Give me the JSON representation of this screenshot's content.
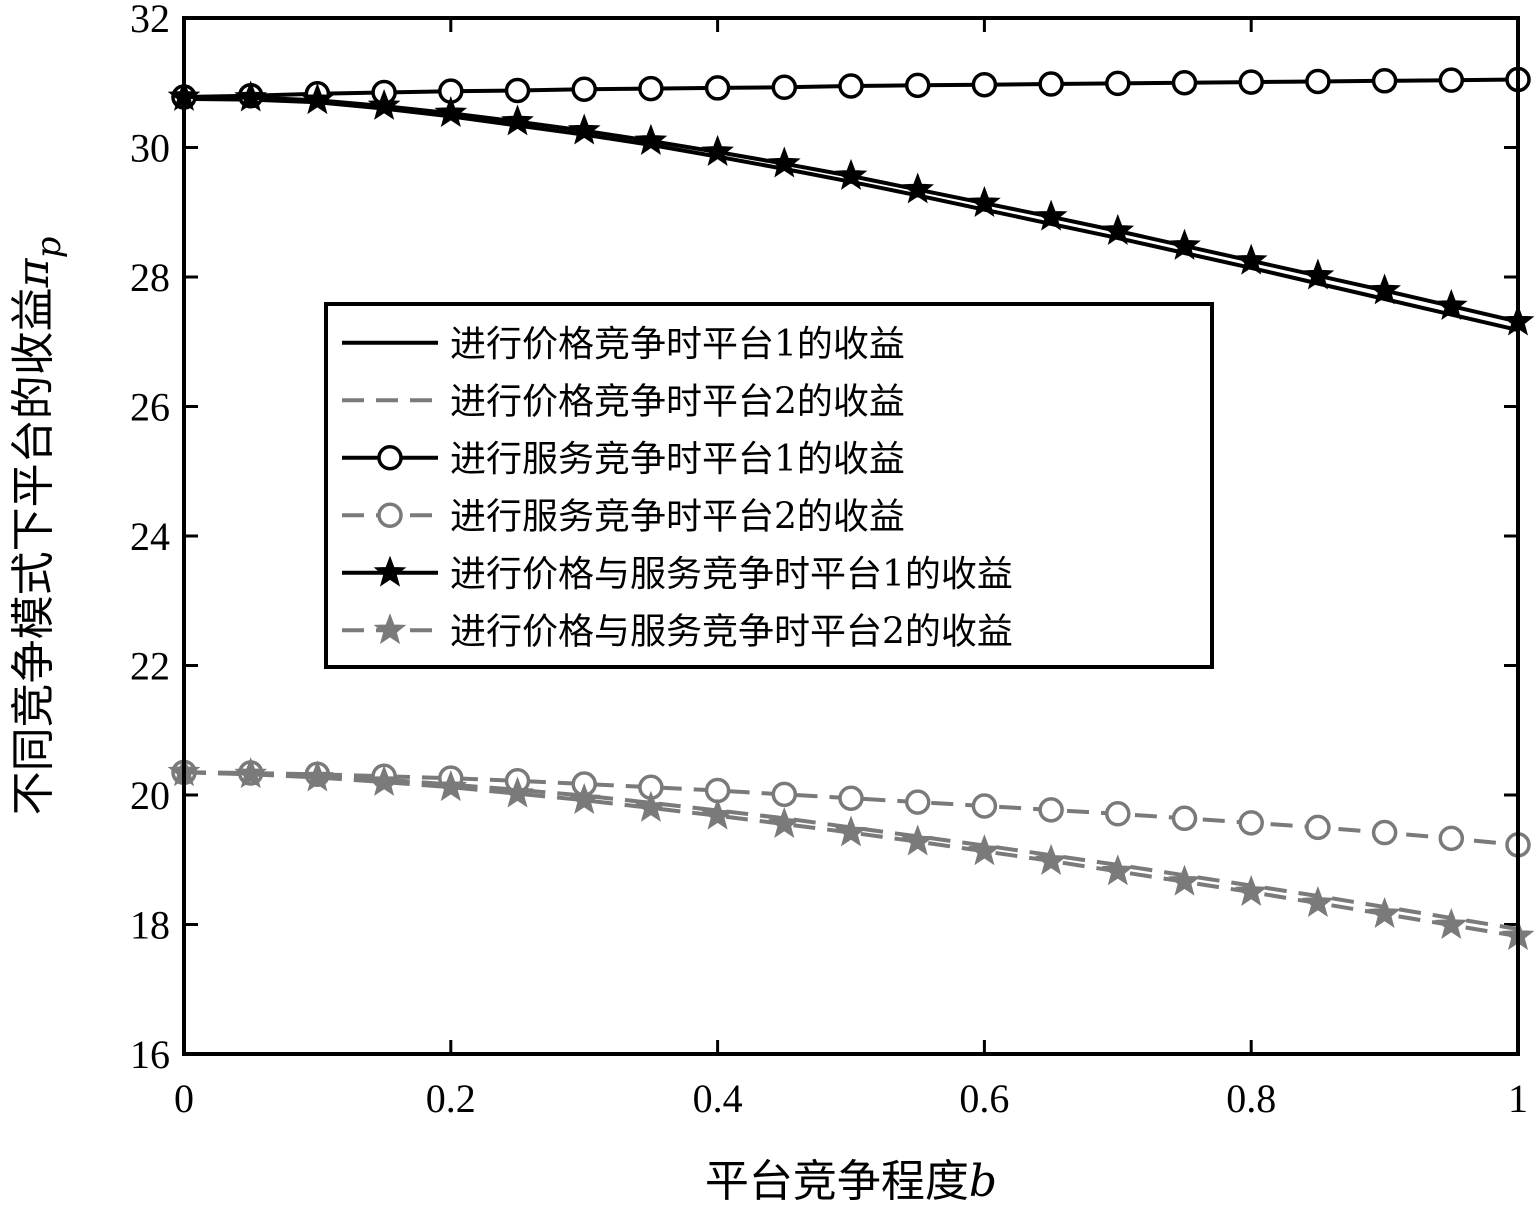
{
  "chart_data": {
    "type": "line",
    "xlabel": "平台竞争程度",
    "xlabel_var": "b",
    "ylabel": "不同竞争模式下平台的收益",
    "ylabel_var": "π",
    "ylabel_sub": "p",
    "xlim": [
      0,
      1
    ],
    "ylim": [
      16,
      32
    ],
    "x_ticks": [
      0,
      0.2,
      0.4,
      0.6,
      0.8,
      1
    ],
    "x_tick_labels": [
      "0",
      "0.2",
      "0.4",
      "0.6",
      "0.8",
      "1"
    ],
    "y_ticks": [
      16,
      18,
      20,
      22,
      24,
      26,
      28,
      30,
      32
    ],
    "y_tick_labels": [
      "16",
      "18",
      "20",
      "22",
      "24",
      "26",
      "28",
      "30",
      "32"
    ],
    "grid": false,
    "legend_position": "center-left",
    "x": [
      0,
      0.05,
      0.1,
      0.15,
      0.2,
      0.25,
      0.3,
      0.35,
      0.4,
      0.45,
      0.5,
      0.55,
      0.6,
      0.65,
      0.7,
      0.75,
      0.8,
      0.85,
      0.9,
      0.95,
      1.0
    ],
    "series": [
      {
        "name": "进行价格竞争时平台1的收益",
        "color": "#000000",
        "dash": "solid",
        "marker": "none",
        "values": [
          30.75,
          30.74,
          30.7,
          30.6,
          30.48,
          30.34,
          30.2,
          30.04,
          29.86,
          29.67,
          29.47,
          29.26,
          29.04,
          28.82,
          28.6,
          28.37,
          28.14,
          27.9,
          27.66,
          27.42,
          27.18
        ]
      },
      {
        "name": "进行价格竞争时平台2的收益",
        "color": "#7a7a7a",
        "dash": "dashed",
        "marker": "none",
        "values": [
          20.35,
          20.33,
          20.3,
          20.24,
          20.16,
          20.08,
          19.99,
          19.88,
          19.76,
          19.64,
          19.5,
          19.36,
          19.22,
          19.07,
          18.92,
          18.76,
          18.6,
          18.44,
          18.27,
          18.1,
          17.93
        ]
      },
      {
        "name": "进行服务竞争时平台1的收益",
        "color": "#000000",
        "dash": "solid",
        "marker": "circle",
        "values": [
          30.78,
          30.8,
          30.83,
          30.85,
          30.87,
          30.88,
          30.9,
          30.91,
          30.92,
          30.93,
          30.95,
          30.96,
          30.97,
          30.98,
          30.99,
          31.0,
          31.01,
          31.02,
          31.03,
          31.04,
          31.05
        ]
      },
      {
        "name": "进行服务竞争时平台2的收益",
        "color": "#7a7a7a",
        "dash": "dashed",
        "marker": "circle",
        "values": [
          20.35,
          20.34,
          20.32,
          20.29,
          20.26,
          20.22,
          20.17,
          20.12,
          20.07,
          20.01,
          19.95,
          19.89,
          19.83,
          19.77,
          19.71,
          19.64,
          19.57,
          19.5,
          19.42,
          19.33,
          19.23
        ]
      },
      {
        "name": "进行价格与服务竞争时平台1的收益",
        "color": "#000000",
        "dash": "solid",
        "marker": "star",
        "values": [
          30.78,
          30.77,
          30.73,
          30.64,
          30.53,
          30.4,
          30.26,
          30.1,
          29.93,
          29.75,
          29.56,
          29.35,
          29.14,
          28.93,
          28.71,
          28.48,
          28.25,
          28.02,
          27.79,
          27.55,
          27.31
        ]
      },
      {
        "name": "进行价格与服务竞争时平台2的收益",
        "color": "#7a7a7a",
        "dash": "dashed",
        "marker": "star",
        "values": [
          20.35,
          20.32,
          20.27,
          20.2,
          20.12,
          20.02,
          19.92,
          19.8,
          19.68,
          19.55,
          19.42,
          19.28,
          19.13,
          18.98,
          18.82,
          18.66,
          18.5,
          18.33,
          18.16,
          17.99,
          17.82
        ]
      }
    ]
  }
}
